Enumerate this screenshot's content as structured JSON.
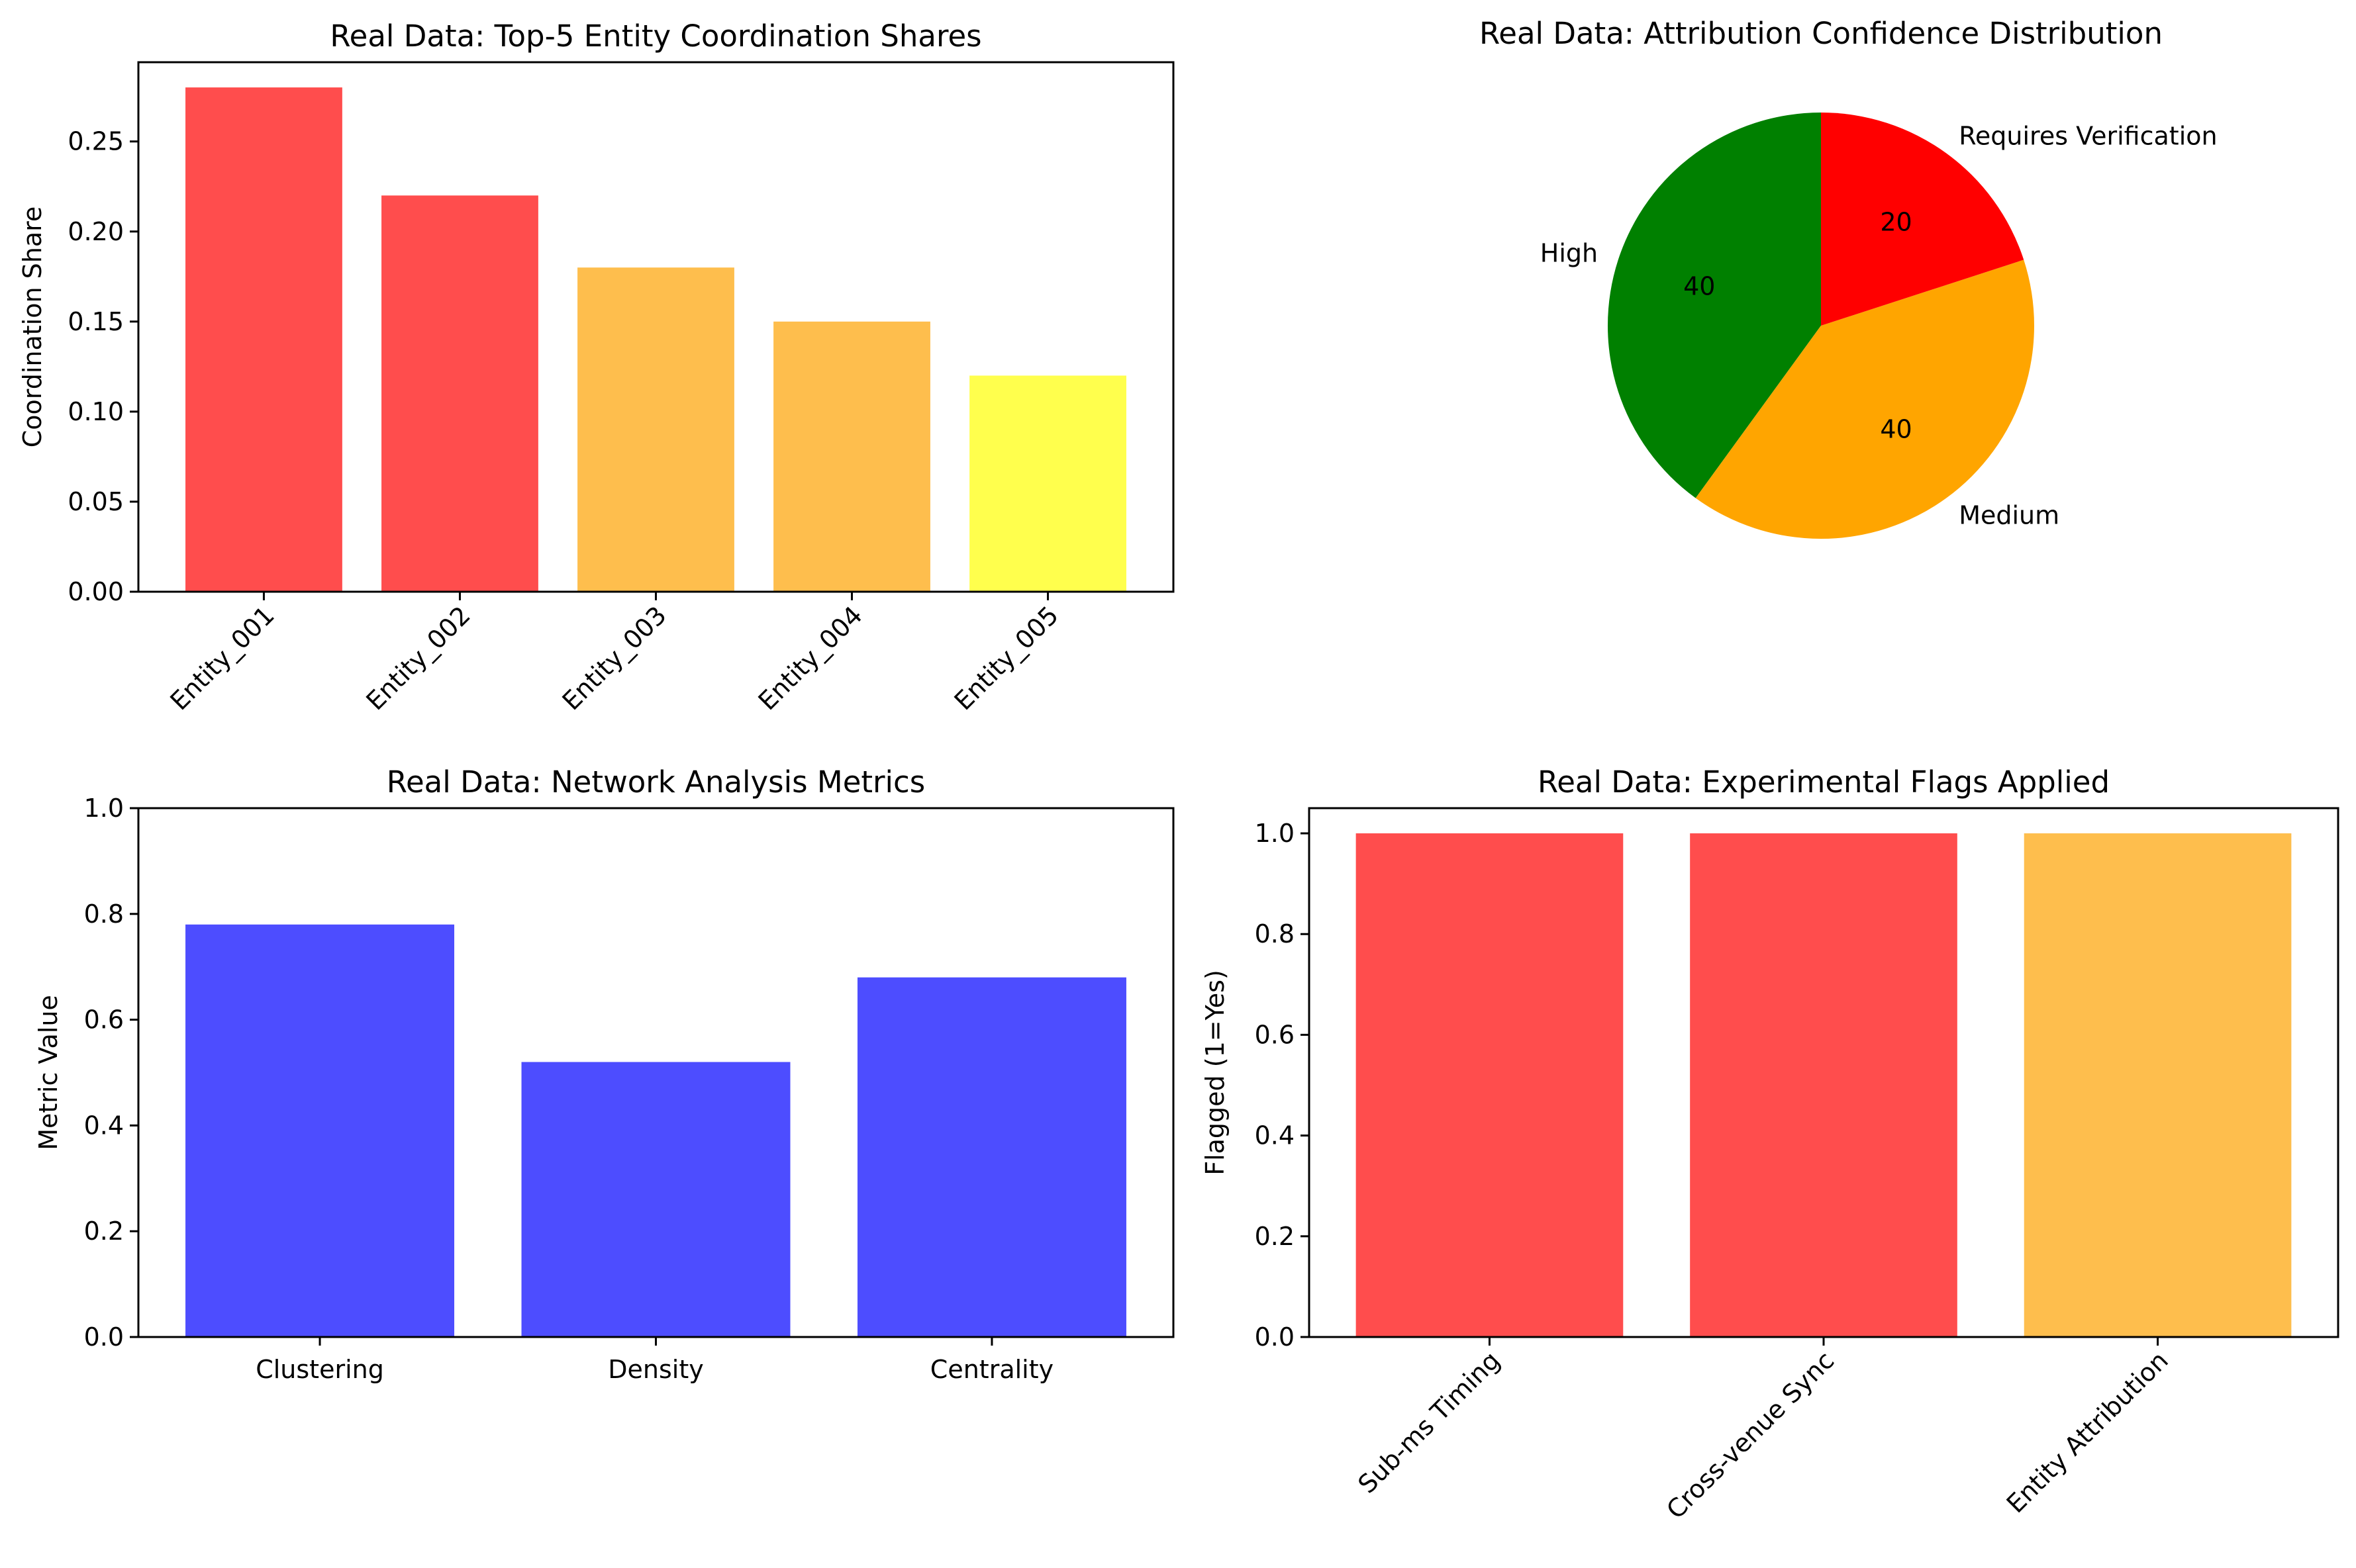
{
  "chart_data": [
    {
      "type": "bar",
      "title": "Real Data: Top-5 Entity Coordination Shares",
      "xlabel": "",
      "ylabel": "Coordination Share",
      "categories": [
        "Entity_001",
        "Entity_002",
        "Entity_003",
        "Entity_004",
        "Entity_005"
      ],
      "values": [
        0.28,
        0.22,
        0.18,
        0.15,
        0.12
      ],
      "colors": [
        "#ff4d4d",
        "#ff4d4d",
        "#febe4d",
        "#febe4d",
        "#ffff4d"
      ],
      "ylim": [
        0,
        0.294
      ],
      "yticks": [
        "0.00",
        "0.05",
        "0.10",
        "0.15",
        "0.20",
        "0.25"
      ],
      "ytick_values": [
        0,
        0.05,
        0.1,
        0.15,
        0.2,
        0.25
      ],
      "xtick_rotation": 45,
      "grid": false
    },
    {
      "type": "pie",
      "title": "Real Data: Attribution Confidence Distribution",
      "labels": [
        "High",
        "Medium",
        "Requires Verification"
      ],
      "values": [
        40,
        40,
        20
      ],
      "value_labels": [
        "40",
        "40",
        "20"
      ],
      "colors": [
        "#008000",
        "#ffa500",
        "#ff0000"
      ],
      "start_angle": 90,
      "direction": "counterclockwise"
    },
    {
      "type": "bar",
      "title": "Real Data: Network Analysis Metrics",
      "xlabel": "",
      "ylabel": "Metric Value",
      "categories": [
        "Clustering",
        "Density",
        "Centrality"
      ],
      "values": [
        0.78,
        0.52,
        0.68
      ],
      "colors": [
        "#4d4dff",
        "#4d4dff",
        "#4d4dff"
      ],
      "ylim": [
        0,
        1
      ],
      "yticks": [
        "0.0",
        "0.2",
        "0.4",
        "0.6",
        "0.8",
        "1.0"
      ],
      "ytick_values": [
        0,
        0.2,
        0.4,
        0.6,
        0.8,
        1.0
      ],
      "xtick_rotation": 0,
      "grid": false
    },
    {
      "type": "bar",
      "title": "Real Data: Experimental Flags Applied",
      "xlabel": "",
      "ylabel": "Flagged (1=Yes)",
      "categories": [
        "Sub-ms Timing",
        "Cross-venue Sync",
        "Entity Attribution"
      ],
      "values": [
        1,
        1,
        1
      ],
      "colors": [
        "#ff4d4d",
        "#ff4d4d",
        "#febe4d"
      ],
      "ylim": [
        0,
        1.05
      ],
      "yticks": [
        "0.0",
        "0.2",
        "0.4",
        "0.6",
        "0.8",
        "1.0"
      ],
      "ytick_values": [
        0,
        0.2,
        0.4,
        0.6,
        0.8,
        1.0
      ],
      "xtick_rotation": 45,
      "grid": false
    }
  ]
}
